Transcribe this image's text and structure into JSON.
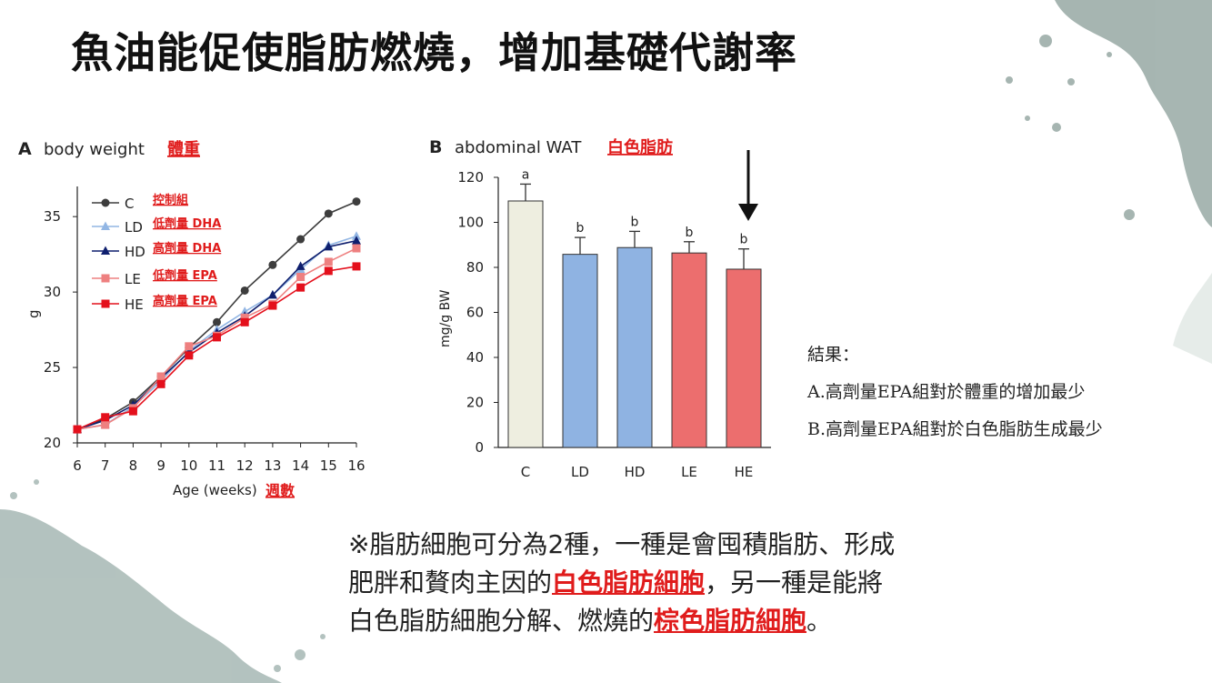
{
  "slide": {
    "title": "魚油能促使脂肪燃燒，增加基礎代謝率",
    "results": {
      "heading": "結果：",
      "line_a": "A.高劑量EPA組對於體重的增加最少",
      "line_b": "B.高劑量EPA組對於白色脂肪生成最少"
    },
    "note": {
      "line1": "※脂肪細胞可分為2種，一種是會囤積脂肪、形成",
      "line2_pre": "肥胖和贅肉主因的",
      "line2_hl": "白色脂肪細胞",
      "line2_post": "，另一種是能將",
      "line3_pre": "白色脂肪細胞分解、燃燒的",
      "line3_hl": "棕色脂肪細胞",
      "line3_post": "。"
    }
  },
  "colors": {
    "C": "#3d3d3d",
    "LD": "#92b6e4",
    "HD": "#0f1f6e",
    "LE": "#ee8080",
    "HE": "#e4101c",
    "barC": "#eeeee0",
    "barLD": "#8fb3e2",
    "barLE": "#ec6e6e",
    "red_label": "#e01c1c"
  },
  "chart_data": [
    {
      "type": "line",
      "panel": "A",
      "title": "body weight",
      "title_zh": "體重",
      "xlabel": "Age (weeks)",
      "xlabel_zh": "週數",
      "ylabel": "g",
      "x": [
        6,
        7,
        8,
        9,
        10,
        11,
        12,
        13,
        14,
        15,
        16
      ],
      "xlim": [
        6,
        16
      ],
      "ylim": [
        20,
        37
      ],
      "yticks": [
        20,
        25,
        30,
        35
      ],
      "grid": false,
      "legend_position": "top-left",
      "series": [
        {
          "name": "C",
          "label_zh": "控制組",
          "marker": "circle",
          "values": [
            20.9,
            21.6,
            22.7,
            24.4,
            26.3,
            28.0,
            30.1,
            31.8,
            33.5,
            35.2,
            36.0
          ]
        },
        {
          "name": "LD",
          "label_zh": "低劑量 DHA",
          "marker": "triangle",
          "values": [
            20.9,
            21.2,
            22.4,
            24.1,
            26.1,
            27.5,
            28.7,
            29.8,
            31.5,
            33.1,
            33.7
          ]
        },
        {
          "name": "HD",
          "label_zh": "高劑量 DHA",
          "marker": "triangle",
          "values": [
            20.9,
            21.5,
            22.5,
            24.3,
            26.0,
            27.3,
            28.4,
            29.8,
            31.7,
            33.0,
            33.4
          ]
        },
        {
          "name": "LE",
          "label_zh": "低劑量 EPA",
          "marker": "square",
          "values": [
            20.9,
            21.2,
            22.3,
            24.4,
            26.4,
            27.1,
            28.3,
            29.2,
            31.0,
            32.0,
            32.9
          ]
        },
        {
          "name": "HE",
          "label_zh": "高劑量 EPA",
          "marker": "square",
          "values": [
            20.9,
            21.7,
            22.1,
            23.9,
            25.8,
            27.0,
            28.0,
            29.1,
            30.3,
            31.4,
            31.7
          ]
        }
      ]
    },
    {
      "type": "bar",
      "panel": "B",
      "title": "abdominal WAT",
      "title_zh": "白色脂肪",
      "ylabel": "mg/g BW",
      "categories": [
        "C",
        "LD",
        "HD",
        "LE",
        "HE"
      ],
      "values": [
        109.5,
        85.8,
        88.8,
        86.4,
        79.2
      ],
      "errors": [
        7.5,
        7.5,
        7.2,
        5.0,
        9.0
      ],
      "significance": [
        "a",
        "b",
        "b",
        "b",
        "b"
      ],
      "ylim": [
        0,
        120
      ],
      "yticks": [
        0,
        20,
        40,
        60,
        80,
        100,
        120
      ],
      "grid": false,
      "annotation": "arrow pointing to HE"
    }
  ]
}
